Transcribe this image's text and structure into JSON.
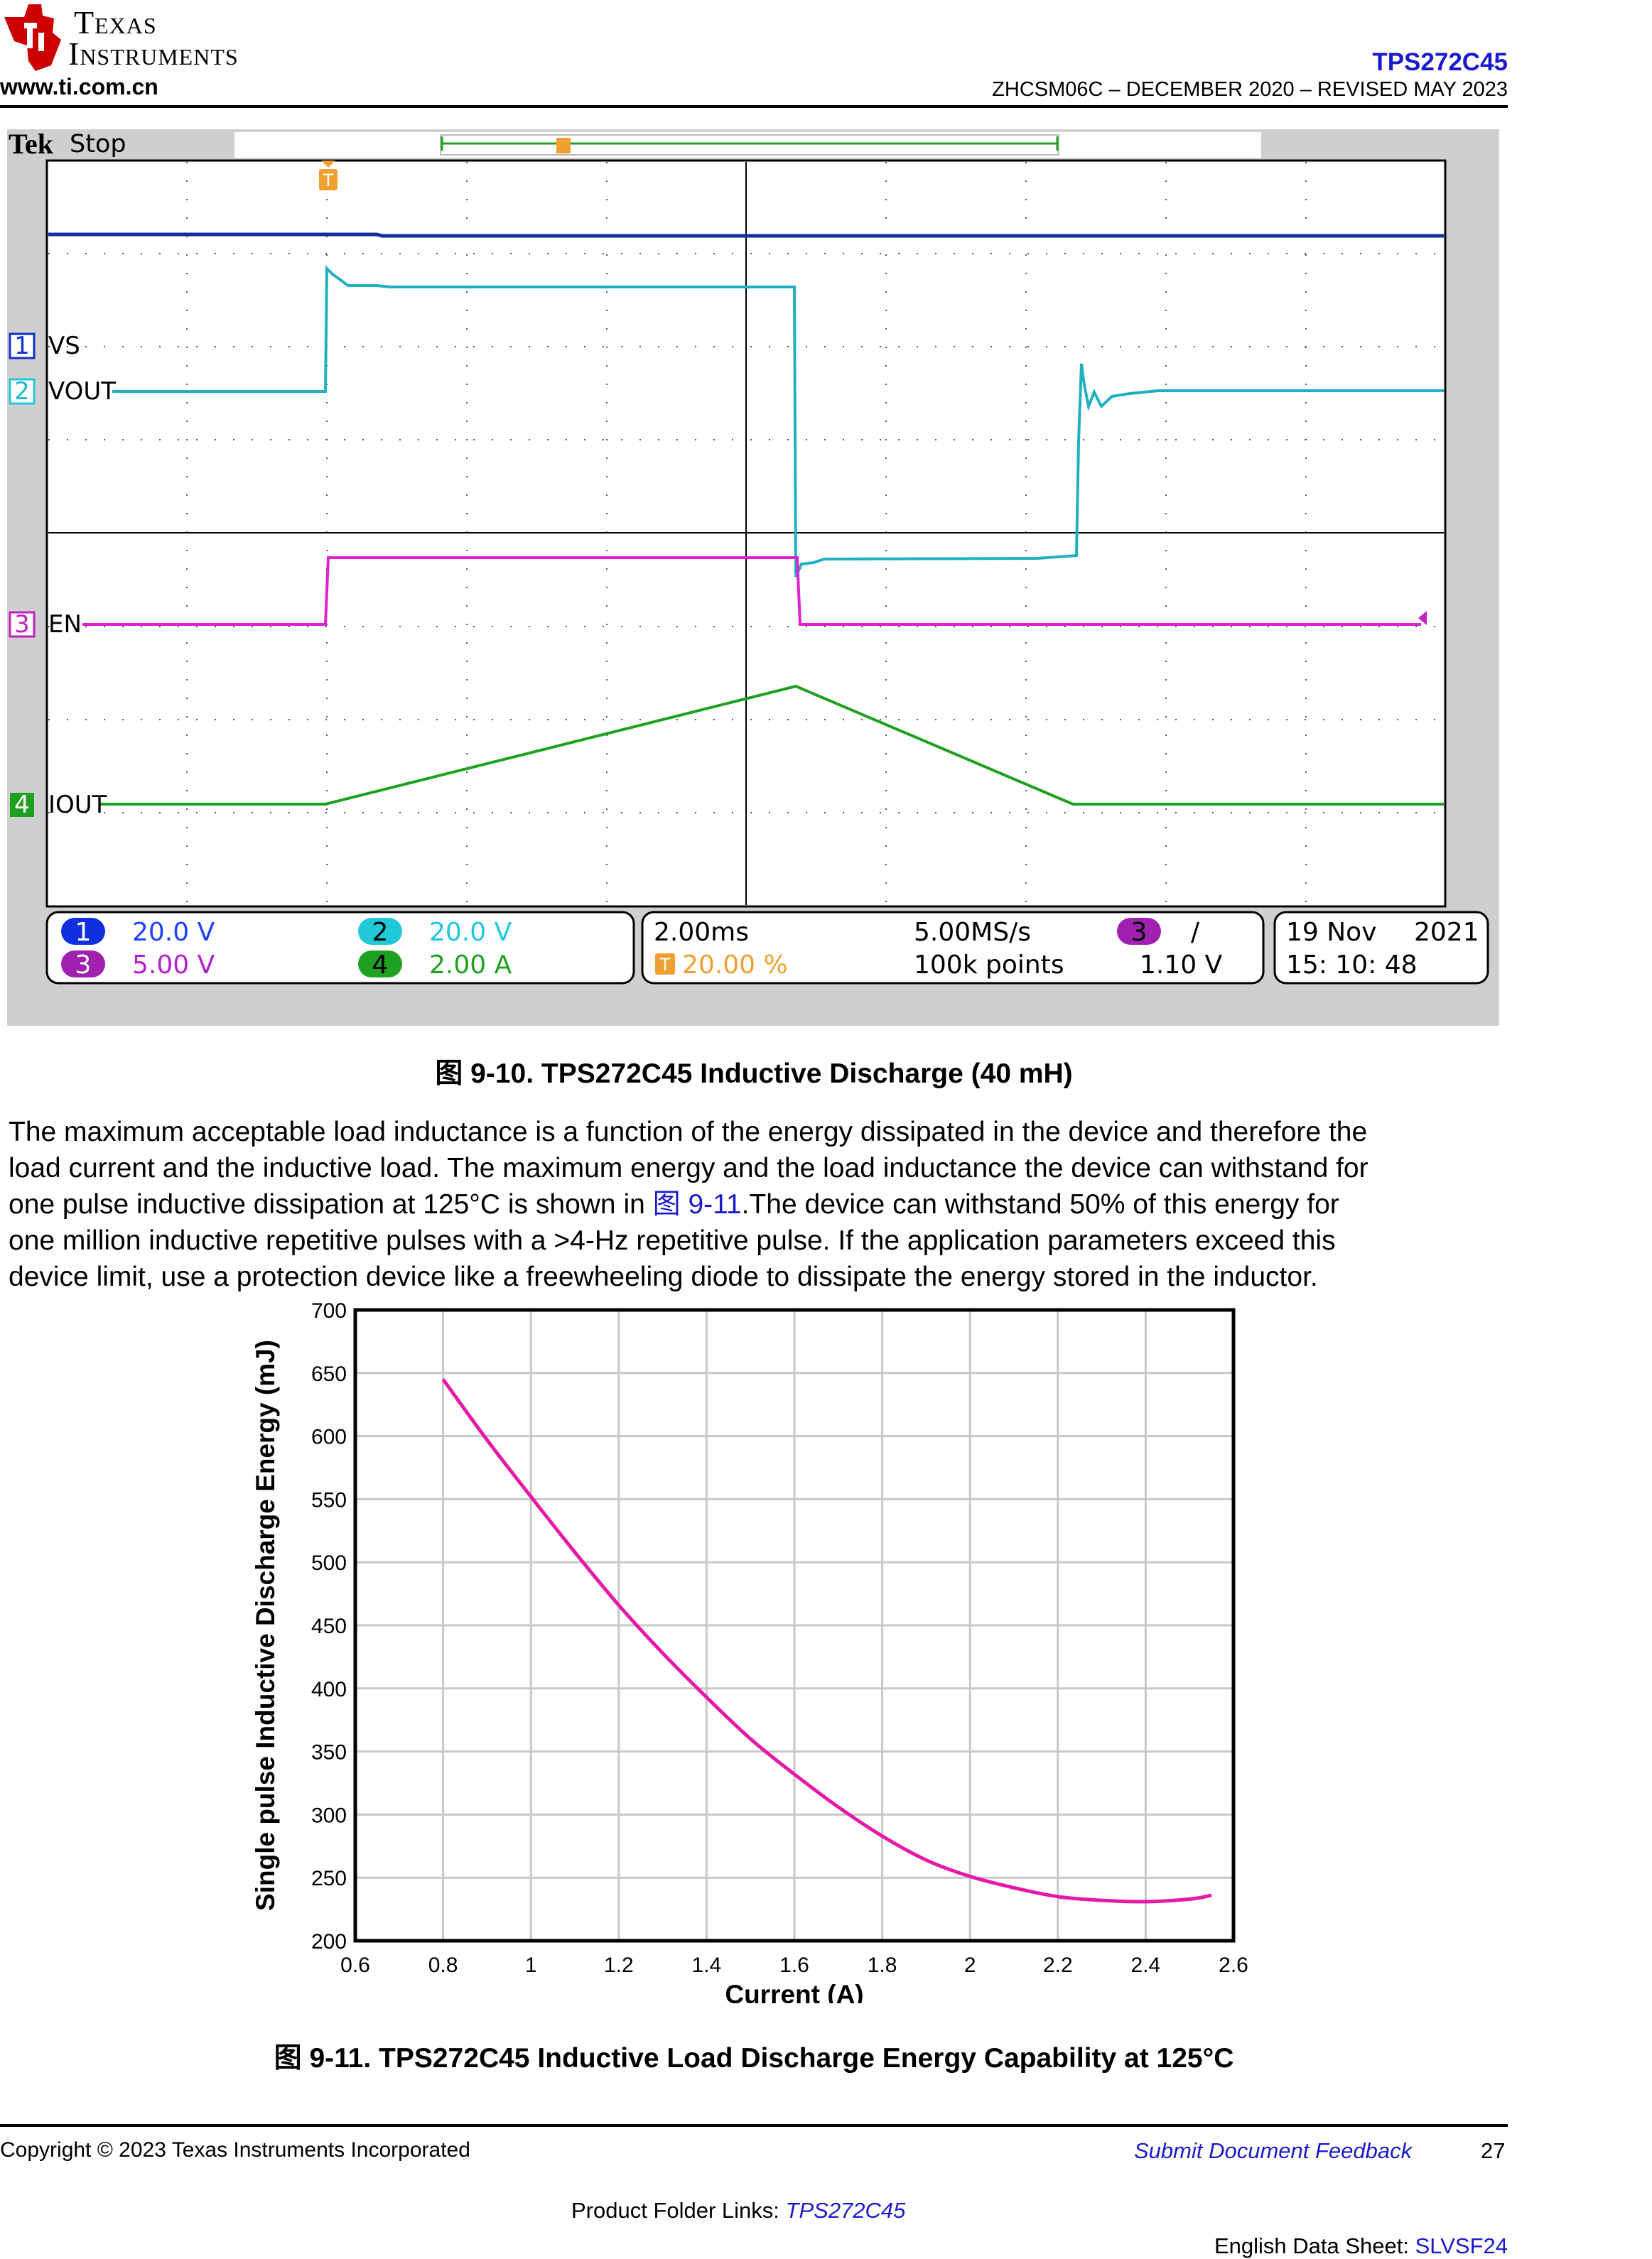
{
  "header": {
    "logo_line1": "Texas",
    "logo_line2": "Instruments",
    "website": "www.ti.com.cn",
    "part_number": "TPS272C45",
    "doc_info": "ZHCSM06C – DECEMBER 2020 – REVISED MAY 2023"
  },
  "scope": {
    "brand": "Tek",
    "state": "Stop",
    "trigger_marker": "T",
    "channels": [
      {
        "num": "1",
        "label": "VS",
        "scale": "20.0 V",
        "color": "#1030c8"
      },
      {
        "num": "2",
        "label": "VOUT",
        "scale": "20.0 V",
        "color": "#20c8d8"
      },
      {
        "num": "3",
        "label": "EN",
        "scale": "5.00 V",
        "color": "#c020c0"
      },
      {
        "num": "4",
        "label": "IOUT",
        "scale": "2.00 A",
        "color": "#20a020"
      }
    ],
    "timebase": "2.00ms",
    "sample_rate": "5.00MS/s",
    "trigger_position": "20.00 %",
    "record_length": "100k points",
    "trigger_channel": "3",
    "trigger_slope": "∕",
    "trigger_level": "1.10 V",
    "date": "19 Nov",
    "year": "2021",
    "time": "15: 10: 48"
  },
  "figure1": {
    "caption": "图 9-10. TPS272C45 Inductive Discharge (40 mH)"
  },
  "paragraph": {
    "line1": "The maximum acceptable load inductance is a function of the energy dissipated in the device and therefore the",
    "line2": "load current and the inductive load. The maximum energy and the load inductance the device can withstand for",
    "line3_pre": "one pulse inductive dissipation at 125°C is shown in ",
    "line3_link": "图 9-11",
    "line3_post": ".The device can withstand 50% of this energy for",
    "line4": "one million inductive repetitive pulses with a >4-Hz repetitive pulse. If the application parameters exceed this",
    "line5": "device limit, use a protection device like a freewheeling diode to dissipate the energy stored in the inductor."
  },
  "chart_data": {
    "type": "line",
    "title": "",
    "xlabel": "Current (A)",
    "ylabel": "Single pulse Inductive Discharge Energy (mJ)",
    "xlim": [
      0.6,
      2.6
    ],
    "ylim": [
      200,
      700
    ],
    "x_ticks": [
      "0.6",
      "0.8",
      "1",
      "1.2",
      "1.4",
      "1.6",
      "1.8",
      "2",
      "2.2",
      "2.4",
      "2.6"
    ],
    "y_ticks": [
      "200",
      "250",
      "300",
      "350",
      "400",
      "450",
      "500",
      "550",
      "600",
      "650",
      "700"
    ],
    "grid": true,
    "line_color": "#e61aa6",
    "series": [
      {
        "x": [
          0.8,
          0.9,
          1.0,
          1.1,
          1.2,
          1.3,
          1.4,
          1.5,
          1.6,
          1.7,
          1.8,
          1.9,
          2.0,
          2.1,
          2.2,
          2.3,
          2.4,
          2.5,
          2.55
        ],
        "y": [
          645,
          597,
          552,
          508,
          466,
          428,
          393,
          360,
          332,
          306,
          283,
          264,
          251,
          242,
          235,
          232,
          231,
          233,
          236
        ]
      }
    ]
  },
  "figure2": {
    "caption": "图 9-11. TPS272C45 Inductive Load Discharge Energy Capability at 125°C"
  },
  "footer": {
    "copyright": "Copyright © 2023 Texas Instruments Incorporated",
    "feedback": "Submit Document Feedback",
    "page_number": "27",
    "product_links_label": "Product Folder Links: ",
    "product_links_value": "TPS272C45",
    "english_label": "English Data Sheet: ",
    "english_value": "SLVSF24"
  }
}
